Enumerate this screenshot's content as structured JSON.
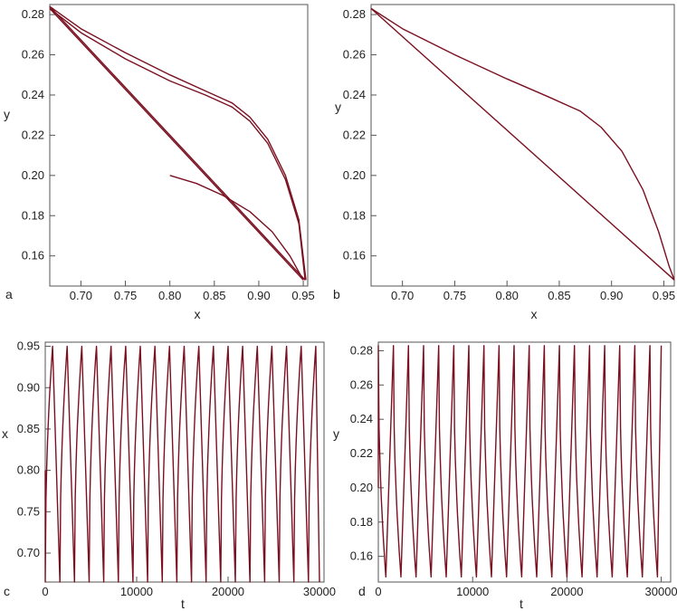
{
  "chart_data": [
    {
      "panel": "a",
      "type": "line",
      "xlabel": "x",
      "ylabel": "y",
      "xlim": [
        0.665,
        0.955
      ],
      "ylim": [
        0.145,
        0.285
      ],
      "xticks": [
        "0.70",
        "0.75",
        "0.80",
        "0.85",
        "0.90",
        "0.95"
      ],
      "yticks": [
        "0.16",
        "0.18",
        "0.20",
        "0.22",
        "0.24",
        "0.26",
        "0.28"
      ],
      "color": "#7a1020",
      "series": [
        {
          "x": [
            0.8,
            0.83,
            0.86,
            0.89,
            0.915,
            0.935,
            0.95
          ],
          "y": [
            0.2,
            0.196,
            0.19,
            0.182,
            0.172,
            0.16,
            0.148
          ]
        },
        {
          "x": [
            0.95,
            0.665
          ],
          "y": [
            0.148,
            0.283
          ]
        },
        {
          "x": [
            0.665,
            0.7,
            0.75,
            0.8,
            0.84,
            0.87,
            0.89,
            0.91,
            0.93,
            0.945,
            0.952
          ],
          "y": [
            0.283,
            0.271,
            0.258,
            0.247,
            0.24,
            0.234,
            0.227,
            0.216,
            0.198,
            0.176,
            0.148
          ]
        },
        {
          "x": [
            0.952,
            0.665
          ],
          "y": [
            0.148,
            0.284
          ]
        },
        {
          "x": [
            0.665,
            0.7,
            0.75,
            0.8,
            0.84,
            0.87,
            0.89,
            0.91,
            0.93,
            0.945,
            0.953
          ],
          "y": [
            0.284,
            0.273,
            0.261,
            0.25,
            0.242,
            0.236,
            0.229,
            0.218,
            0.2,
            0.178,
            0.148
          ]
        }
      ]
    },
    {
      "panel": "b",
      "type": "line",
      "xlabel": "x",
      "ylabel": "y",
      "xlim": [
        0.67,
        0.96
      ],
      "ylim": [
        0.145,
        0.285
      ],
      "xticks": [
        "0.70",
        "0.75",
        "0.80",
        "0.85",
        "0.90",
        "0.95"
      ],
      "yticks": [
        "0.16",
        "0.18",
        "0.20",
        "0.22",
        "0.24",
        "0.26",
        "0.28"
      ],
      "color": "#7a1020",
      "series": [
        {
          "x": [
            0.67,
            0.7,
            0.75,
            0.8,
            0.84,
            0.87,
            0.89,
            0.91,
            0.93,
            0.945,
            0.955,
            0.96
          ],
          "y": [
            0.283,
            0.273,
            0.26,
            0.248,
            0.239,
            0.232,
            0.224,
            0.212,
            0.193,
            0.172,
            0.155,
            0.148
          ]
        },
        {
          "x": [
            0.96,
            0.67
          ],
          "y": [
            0.148,
            0.283
          ]
        }
      ]
    },
    {
      "panel": "c",
      "type": "line",
      "xlabel": "t",
      "ylabel": "x",
      "xlim": [
        0,
        30500
      ],
      "ylim": [
        0.665,
        0.955
      ],
      "xticks": [
        "0",
        "10000",
        "20000",
        "30000"
      ],
      "yticks": [
        "0.70",
        "0.75",
        "0.80",
        "0.85",
        "0.90",
        "0.95"
      ],
      "color": "#7a1020",
      "oscillation": {
        "period": 1600,
        "rise": 800,
        "min": 0.665,
        "max": 0.95,
        "start_value": 0.8,
        "t_start": 0,
        "t_end": 30000
      }
    },
    {
      "panel": "d",
      "type": "line",
      "xlabel": "t",
      "ylabel": "y",
      "xlim": [
        0,
        31000
      ],
      "ylim": [
        0.145,
        0.285
      ],
      "xticks": [
        "0",
        "10000",
        "20000",
        "30000"
      ],
      "yticks": [
        "0.16",
        "0.18",
        "0.20",
        "0.22",
        "0.24",
        "0.26",
        "0.28"
      ],
      "color": "#7a1020",
      "oscillation": {
        "period": 1600,
        "drop": 800,
        "min": 0.148,
        "max": 0.283,
        "start_value": 0.2,
        "t_start": 0,
        "t_end": 30000
      }
    }
  ]
}
